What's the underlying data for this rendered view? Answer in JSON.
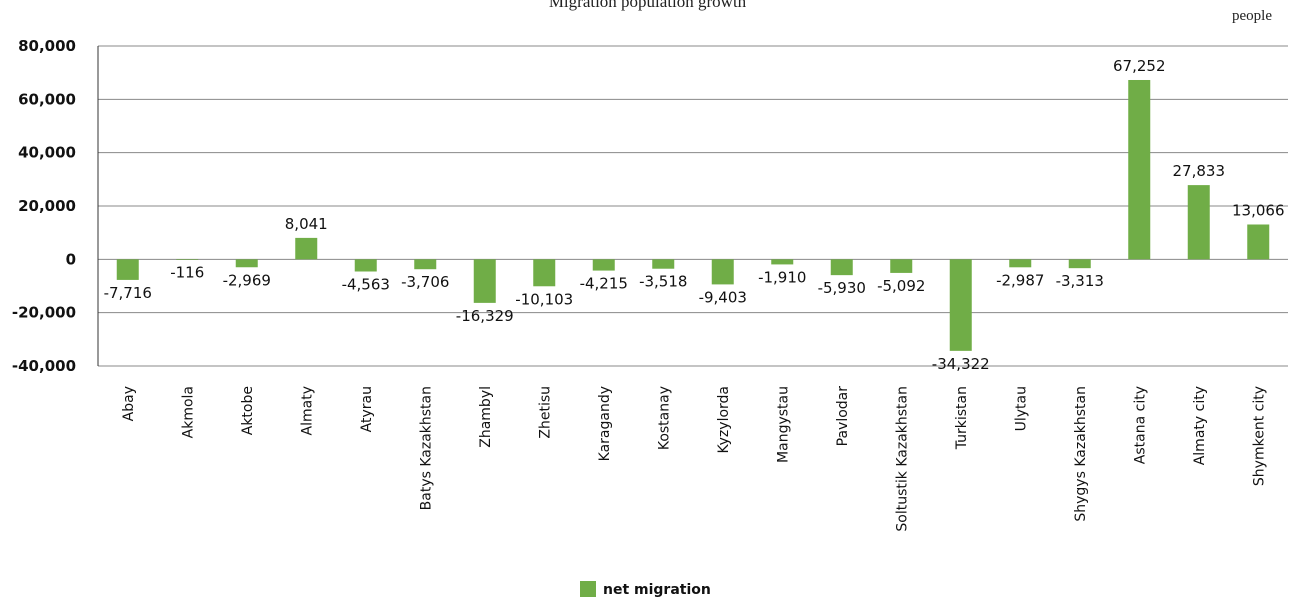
{
  "chart_data": {
    "type": "bar",
    "title": "Migration population growth",
    "unit": "people",
    "categories": [
      "Abay",
      "Akmola",
      "Aktobe",
      "Almaty",
      "Atyrau",
      "Batys Kazakhstan",
      "Zhambyl",
      "Zhetisu",
      "Karagandy",
      "Kostanay",
      "Kyzylorda",
      "Mangystau",
      "Pavlodar",
      "Soltustik Kazakhstan",
      "Turkistan",
      "Ulytau",
      "Shygys Kazakhstan",
      "Astana city",
      "Almaty city",
      "Shymkent city"
    ],
    "series": [
      {
        "name": "net migration",
        "values": [
          -7716,
          -116,
          -2969,
          8041,
          -4563,
          -3706,
          -16329,
          -10103,
          -4215,
          -3518,
          -9403,
          -1910,
          -5930,
          -5092,
          -34322,
          -2987,
          -3313,
          67252,
          27833,
          13066
        ],
        "labels": [
          "-7,716",
          "-116",
          "-2,969",
          "8,041",
          "-4,563",
          "-3,706",
          "-16,329",
          "-10,103",
          "-4,215",
          "-3,518",
          "-9,403",
          "-1,910",
          "-5,930",
          "-5,092",
          "-34,322",
          "-2,987",
          "-3,313",
          "67,252",
          "27,833",
          "13,066"
        ]
      }
    ],
    "yticks": [
      80000,
      60000,
      40000,
      20000,
      0,
      -20000,
      -40000
    ],
    "ytick_labels": [
      "80,000",
      "60,000",
      "40,000",
      "20,000",
      "0",
      "-20,000",
      "-40,000"
    ],
    "ylim": [
      -40000,
      80000
    ],
    "grid": true,
    "legend": "bottom",
    "colors": {
      "bar": "#70ad47",
      "grid": "#888888",
      "axis": "#333333"
    }
  }
}
